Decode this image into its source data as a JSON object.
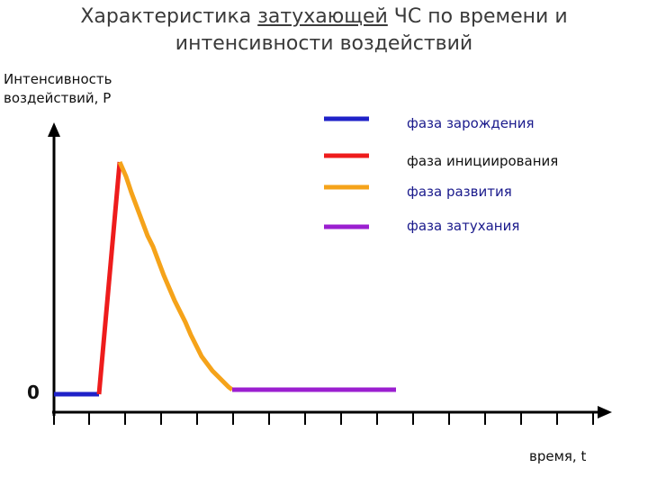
{
  "title": {
    "line1_pre": "Характеристика ",
    "line1_underlined": "затухающей",
    "line1_post": " ЧС по времени и",
    "line2": "интенсивности воздействий"
  },
  "axes": {
    "y_label_line1": "Интенсивность",
    "y_label_line2": "воздействий, P",
    "x_label": "время, t",
    "origin_label": "0"
  },
  "legend": [
    {
      "label": "фаза зарождения",
      "color": "#1f22c8"
    },
    {
      "label": "фаза инициирования",
      "color": "#ee1c1c"
    },
    {
      "label": "фаза развития",
      "color": "#f5a31a"
    },
    {
      "label": "фаза затухания",
      "color": "#9b1fd0"
    }
  ]
}
